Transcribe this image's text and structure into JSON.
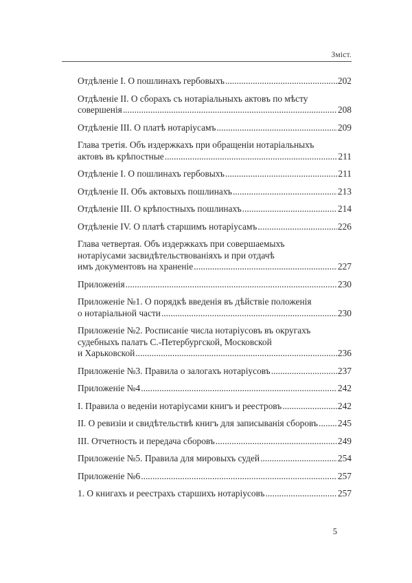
{
  "header": {
    "running_title": "Зміст."
  },
  "toc": {
    "entries": [
      {
        "lines": [
          "Отдѣленіе I. О пошлинахъ гербовыхъ"
        ],
        "page": "202"
      },
      {
        "lines": [
          "Отдѣленіе II. О сборахъ съ нотаріальныхъ актовъ по мѣсту",
          "совершенія"
        ],
        "page": "208"
      },
      {
        "lines": [
          "Отдѣленіе III. О платѣ нотаріусамъ"
        ],
        "page": "209"
      },
      {
        "lines": [
          "Глава третія. Объ издержкахъ при обращеніи нотаріальныхъ",
          "актовъ въ крѣпостные"
        ],
        "page": "211"
      },
      {
        "lines": [
          "Отдѣленіе I. О пошлинахъ гербовыхъ"
        ],
        "page": "211"
      },
      {
        "lines": [
          "Отдѣленіе II. Объ актовыхъ пошлинахъ"
        ],
        "page": "213"
      },
      {
        "lines": [
          "Отдѣленіе III. О крѣпостныхъ пошлинахъ"
        ],
        "page": "214"
      },
      {
        "lines": [
          "Отдѣленіе IV. О платѣ старшимъ нотаріусамъ"
        ],
        "page": "226"
      },
      {
        "lines": [
          "Глава четвертая. Объ издержкахъ при совершаемыхъ",
          "нотаріусами засвидѣтельствованіяхъ и при отдачѣ",
          "имъ документовъ на храненіе"
        ],
        "page": "227"
      },
      {
        "lines": [
          "Приложенія"
        ],
        "page": "230"
      },
      {
        "lines": [
          "Приложеніе №1. О порядкѣ введенія въ дѣйствіе положенія",
          "о нотаріальной части"
        ],
        "page": "230"
      },
      {
        "lines": [
          "Приложеніе №2. Росписаніе числа нотаріусовъ въ округахъ",
          "судебныхъ палатъ С.-Петербургской, Московской",
          "и Харьковской"
        ],
        "page": "236"
      },
      {
        "lines": [
          "Приложеніе №3. Правила о залогахъ нотаріусовъ"
        ],
        "page": "237"
      },
      {
        "lines": [
          "Приложеніе №4"
        ],
        "page": "242"
      },
      {
        "lines": [
          "I. Правила о веденіи нотаріусами книгъ и реестровъ"
        ],
        "page": "242"
      },
      {
        "lines": [
          "II. О ревизіи и свидѣтельствѣ книгъ для записыванія сборовъ"
        ],
        "page": "245"
      },
      {
        "lines": [
          "III. Отчетность и передача сборовъ"
        ],
        "page": "249"
      },
      {
        "lines": [
          "Приложеніе №5. Правила для мировыхъ судей"
        ],
        "page": "254"
      },
      {
        "lines": [
          "Приложеніе №6"
        ],
        "page": "257"
      },
      {
        "lines": [
          "1. О книгахъ и реестрахъ старшихъ нотаріусовъ"
        ],
        "page": "257"
      }
    ]
  },
  "footer": {
    "page_number": "5"
  }
}
